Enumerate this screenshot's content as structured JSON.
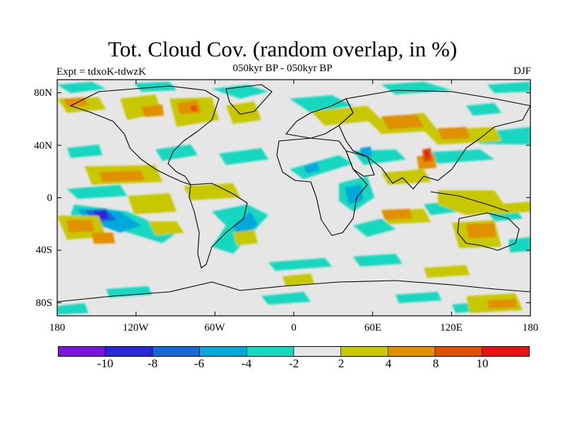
{
  "title": "Tot. Cloud Cov. (random overlap, in %)",
  "subtitle": "050kyr BP - 050kyr BP",
  "expt_label": "Expt = tdxoK-tdwzK",
  "season": "DJF",
  "axes": {
    "y_ticks": [
      "80N",
      "40N",
      "0",
      "40S",
      "80S"
    ],
    "y_values": [
      80,
      40,
      0,
      -40,
      -80
    ],
    "x_ticks": [
      "180",
      "120W",
      "60W",
      "0",
      "60E",
      "120E",
      "180"
    ],
    "x_values": [
      -180,
      -120,
      -60,
      0,
      60,
      120,
      180
    ],
    "lon_range": [
      -180,
      180
    ],
    "lat_range": [
      -90,
      90
    ]
  },
  "colorbar": {
    "colors": [
      "#7a14d8",
      "#2828d8",
      "#1468d8",
      "#00a8dc",
      "#14d8c0",
      "#e6e6e6",
      "#c8c800",
      "#e09000",
      "#e05000",
      "#e61414"
    ],
    "labels": [
      "-10",
      "-8",
      "-6",
      "-4",
      "-2",
      "2",
      "4",
      "8",
      "10"
    ]
  },
  "colors": {
    "land_outline": "#000000",
    "background": "#e6e6e6"
  }
}
